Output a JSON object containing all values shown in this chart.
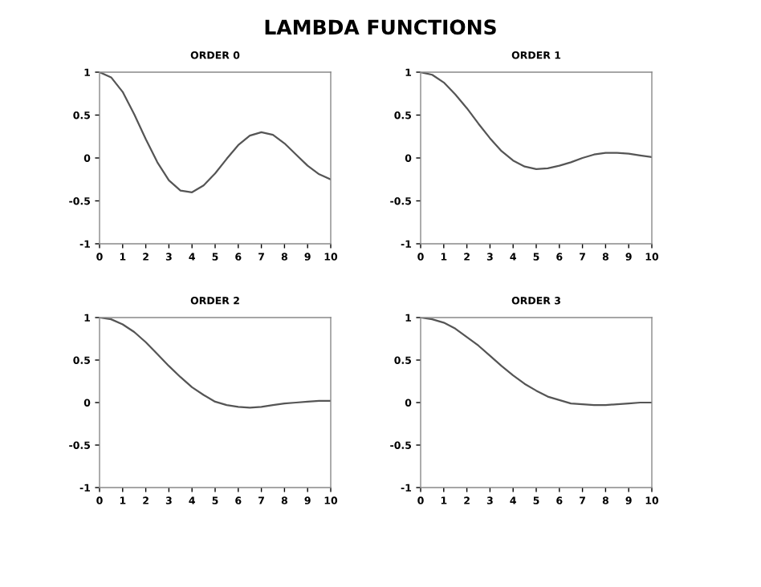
{
  "chart_data": [
    {
      "type": "line",
      "title": "ORDER 0",
      "annotations": [
        "LAMBDA FUNCTIONS"
      ],
      "x": [
        0,
        0.5,
        1,
        1.5,
        2,
        2.5,
        3,
        3.5,
        4,
        4.5,
        5,
        5.5,
        6,
        6.5,
        7,
        7.5,
        8,
        8.5,
        9,
        9.5,
        10
      ],
      "xlim": [
        0,
        10
      ],
      "xticks": [
        0,
        1,
        2,
        3,
        4,
        5,
        6,
        7,
        8,
        9,
        10
      ],
      "ylim": [
        -1,
        1
      ],
      "yticks": [
        -1,
        -0.5,
        0,
        0.5,
        1
      ],
      "grid": false,
      "marker": "none",
      "line_style": "solid",
      "series": [
        {
          "color": "#555555",
          "values": [
            1,
            0.94,
            0.77,
            0.51,
            0.22,
            -0.05,
            -0.26,
            -0.38,
            -0.4,
            -0.32,
            -0.18,
            -0.01,
            0.15,
            0.26,
            0.3,
            0.27,
            0.17,
            0.04,
            -0.09,
            -0.19,
            -0.25
          ]
        }
      ]
    },
    {
      "type": "line",
      "title": "ORDER 1",
      "x": [
        0,
        0.5,
        1,
        1.5,
        2,
        2.5,
        3,
        3.5,
        4,
        4.5,
        5,
        5.5,
        6,
        6.5,
        7,
        7.5,
        8,
        8.5,
        9,
        9.5,
        10
      ],
      "xlim": [
        0,
        10
      ],
      "xticks": [
        0,
        1,
        2,
        3,
        4,
        5,
        6,
        7,
        8,
        9,
        10
      ],
      "ylim": [
        -1,
        1
      ],
      "yticks": [
        -1,
        -0.5,
        0,
        0.5,
        1
      ],
      "grid": false,
      "marker": "none",
      "line_style": "solid",
      "series": [
        {
          "color": "#555555",
          "values": [
            1,
            0.97,
            0.88,
            0.74,
            0.58,
            0.4,
            0.23,
            0.08,
            -0.03,
            -0.1,
            -0.13,
            -0.12,
            -0.09,
            -0.05,
            0.0,
            0.04,
            0.06,
            0.06,
            0.05,
            0.03,
            0.01
          ]
        }
      ]
    },
    {
      "type": "line",
      "title": "ORDER 2",
      "x": [
        0,
        0.5,
        1,
        1.5,
        2,
        2.5,
        3,
        3.5,
        4,
        4.5,
        5,
        5.5,
        6,
        6.5,
        7,
        7.5,
        8,
        8.5,
        9,
        9.5,
        10
      ],
      "xlim": [
        0,
        10
      ],
      "xticks": [
        0,
        1,
        2,
        3,
        4,
        5,
        6,
        7,
        8,
        9,
        10
      ],
      "ylim": [
        -1,
        1
      ],
      "yticks": [
        -1,
        -0.5,
        0,
        0.5,
        1
      ],
      "grid": false,
      "marker": "none",
      "line_style": "solid",
      "series": [
        {
          "color": "#555555",
          "values": [
            1,
            0.98,
            0.92,
            0.83,
            0.71,
            0.57,
            0.43,
            0.3,
            0.18,
            0.09,
            0.01,
            -0.03,
            -0.05,
            -0.06,
            -0.05,
            -0.03,
            -0.01,
            0.0,
            0.01,
            0.02,
            0.02
          ]
        }
      ]
    },
    {
      "type": "line",
      "title": "ORDER 3",
      "x": [
        0,
        0.5,
        1,
        1.5,
        2,
        2.5,
        3,
        3.5,
        4,
        4.5,
        5,
        5.5,
        6,
        6.5,
        7,
        7.5,
        8,
        8.5,
        9,
        9.5,
        10
      ],
      "xlim": [
        0,
        10
      ],
      "xticks": [
        0,
        1,
        2,
        3,
        4,
        5,
        6,
        7,
        8,
        9,
        10
      ],
      "ylim": [
        -1,
        1
      ],
      "yticks": [
        -1,
        -0.5,
        0,
        0.5,
        1
      ],
      "grid": false,
      "marker": "none",
      "line_style": "solid",
      "series": [
        {
          "color": "#555555",
          "values": [
            1,
            0.98,
            0.94,
            0.87,
            0.77,
            0.67,
            0.55,
            0.43,
            0.32,
            0.22,
            0.14,
            0.07,
            0.03,
            -0.01,
            -0.02,
            -0.03,
            -0.03,
            -0.02,
            -0.01,
            0.0,
            0.0
          ]
        }
      ]
    }
  ]
}
